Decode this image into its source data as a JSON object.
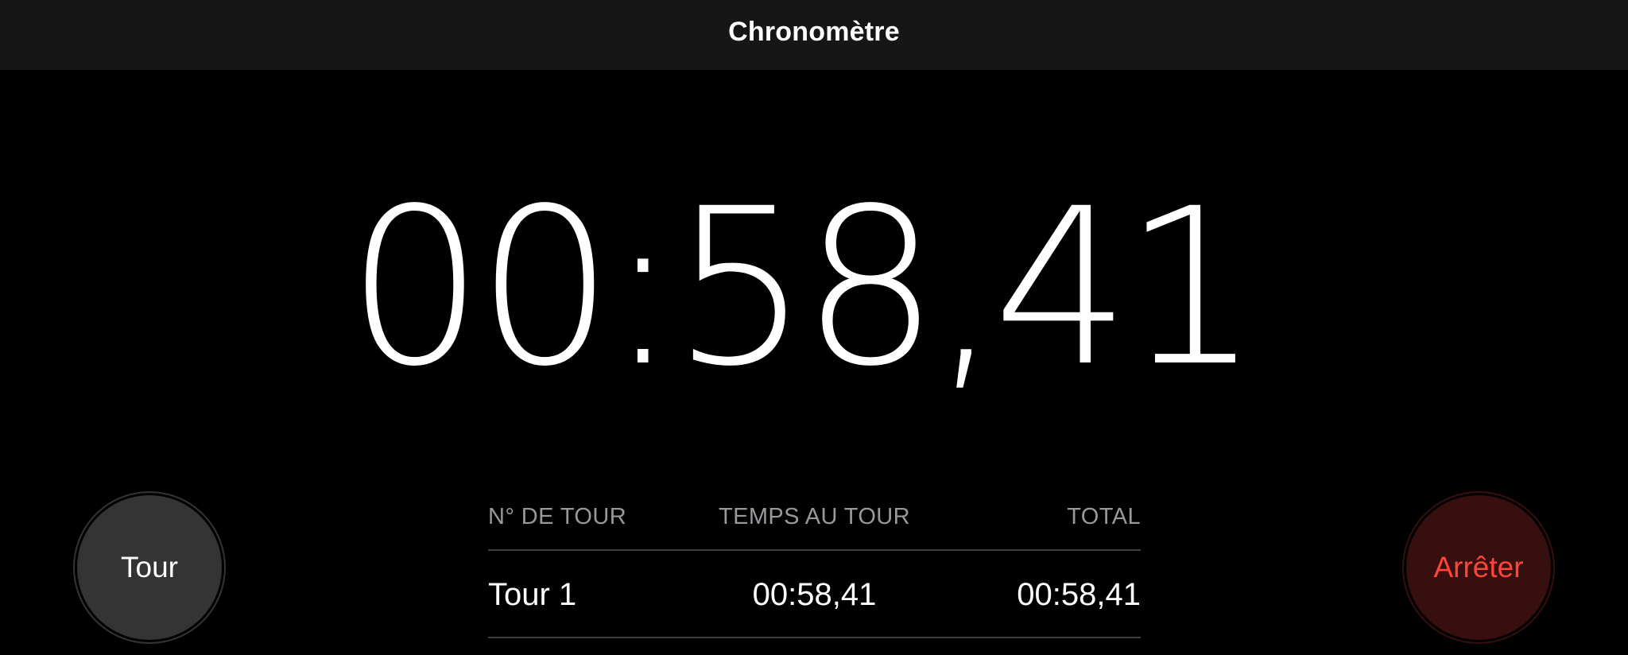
{
  "titlebar": {
    "title": "Chronomètre"
  },
  "timer": {
    "display": "00:58,41"
  },
  "controls": {
    "lap_button": "Tour",
    "stop_button": "Arrêter"
  },
  "laps": {
    "headers": {
      "number": "N° DE TOUR",
      "lap_time": "TEMPS AU TOUR",
      "total": "TOTAL"
    },
    "rows": [
      {
        "number": "Tour 1",
        "lap_time": "00:58,41",
        "total": "00:58,41"
      }
    ]
  },
  "colors": {
    "background": "#000000",
    "titlebar_bg": "#161616",
    "timer_text": "#FFFFFF",
    "header_gray": "#98989D",
    "separator": "#3D3D3F",
    "lap_button_fill": "#343434",
    "stop_button_fill": "#360F0E",
    "stop_red": "#FF453A"
  }
}
